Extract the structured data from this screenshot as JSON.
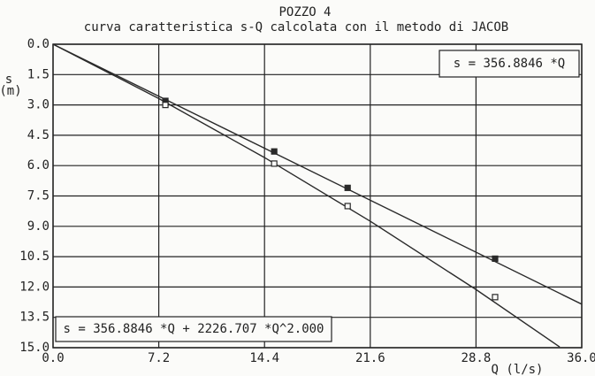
{
  "chart_data": {
    "type": "scatter",
    "title": "POZZO 4",
    "subtitle": "curva caratteristica s-Q calcolata con il metodo di JACOB",
    "y_label": "s",
    "y_unit": "(m)",
    "x_label": "Q (l/s)",
    "annotations": [
      "s = 356.8846 *Q",
      "s = 356.8846 *Q + 2226.707 *Q^2.000"
    ],
    "xlim": [
      0,
      36
    ],
    "ylim": [
      0,
      15
    ],
    "y_inverted": true,
    "grid": true,
    "color": "#2a2a2a",
    "xticks": [
      {
        "value": 0,
        "label": "0.0"
      },
      7.2,
      14.4,
      21.6,
      28.8,
      {
        "value": 36,
        "label": "36.0"
      }
    ],
    "yticks": [
      {
        "value": 0,
        "label": "0.0"
      },
      1.5,
      {
        "value": 3,
        "label": "3.0"
      },
      4.5,
      {
        "value": 6,
        "label": "6.0"
      },
      7.5,
      {
        "value": 9,
        "label": "9.0"
      },
      10.5,
      {
        "value": 12,
        "label": "12.0"
      },
      13.5,
      {
        "value": 15,
        "label": "15.0"
      }
    ],
    "series": [
      {
        "kind": "points",
        "marker": "filled",
        "x": [
          7.65,
          15.06,
          20.06,
          30.1
        ],
        "values": [
          2.8,
          5.3,
          7.1,
          10.6
        ]
      },
      {
        "kind": "points",
        "marker": "open",
        "x": [
          7.65,
          15.06,
          20.06,
          30.1
        ],
        "values": [
          3.0,
          5.9,
          8.0,
          12.5
        ]
      },
      {
        "kind": "line",
        "x": [
          0,
          36
        ],
        "values": [
          0,
          12.85
        ]
      },
      {
        "kind": "line",
        "x": [
          0,
          7.2,
          14.4,
          21.6,
          28.8,
          34.5
        ],
        "values": [
          0,
          2.685,
          5.601,
          8.748,
          12.125,
          14.963
        ]
      }
    ]
  }
}
